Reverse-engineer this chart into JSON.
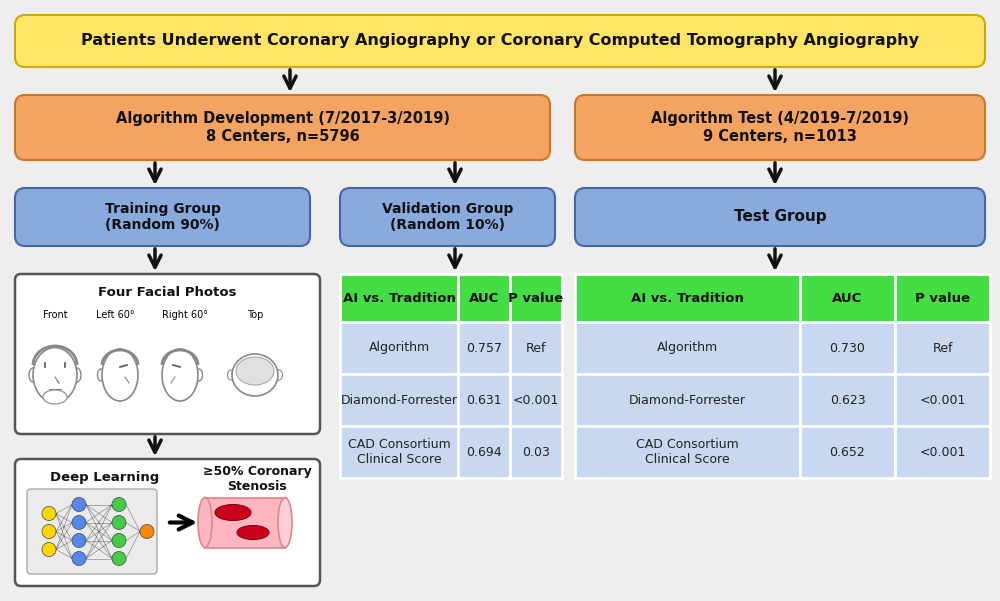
{
  "bg_color": "#EEEEEE",
  "title_box_color": "#FFE566",
  "title_box_edge": "#CCAA00",
  "title_text": "Patients Underwent Coronary Angiography or Coronary Computed Tomography Angiography",
  "title_fontsize": 11.5,
  "dev_box_color": "#F4A460",
  "dev_box_edge": "#CC7722",
  "dev_text": "Algorithm Development (7/2017-3/2019)\n8 Centers, n=5796",
  "test_box_color": "#F4A460",
  "test_box_edge": "#CC7722",
  "test_text": "Algorithm Test (4/2019-7/2019)\n9 Centers, n=1013",
  "group_box_color": "#88AADD",
  "group_box_edge": "#4466AA",
  "training_text": "Training Group\n(Random 90%)",
  "validation_text": "Validation Group\n(Random 10%)",
  "testgroup_text": "Test Group",
  "group_fontsize": 10,
  "table_header_color": "#44DD44",
  "table_row_color_1": "#C8D8F0",
  "table_row_color_2": "#D8E8FF",
  "table_header_fontsize": 9.5,
  "table_row_fontsize": 9,
  "val_headers": [
    "AI vs. Tradition",
    "AUC",
    "P value"
  ],
  "val_rows": [
    [
      "Algorithm",
      "0.757",
      "Ref"
    ],
    [
      "Diamond-Forrester",
      "0.631",
      "<0.001"
    ],
    [
      "CAD Consortium\nClinical Score",
      "0.694",
      "0.03"
    ]
  ],
  "test_headers": [
    "AI vs. Tradition",
    "AUC",
    "P value"
  ],
  "test_rows": [
    [
      "Algorithm",
      "0.730",
      "Ref"
    ],
    [
      "Diamond-Forrester",
      "0.623",
      "<0.001"
    ],
    [
      "CAD Consortium\nClinical Score",
      "0.652",
      "<0.001"
    ]
  ],
  "face_labels": [
    "Front",
    "Left 60°",
    "Right 60°",
    "Top"
  ],
  "four_faces_title": "Four Facial Photos",
  "deep_learning_text": "Deep Learning",
  "stenosis_text": "≥50% Coronary\nStenosis",
  "arrow_color": "#111111",
  "box_text_color": "#111111"
}
